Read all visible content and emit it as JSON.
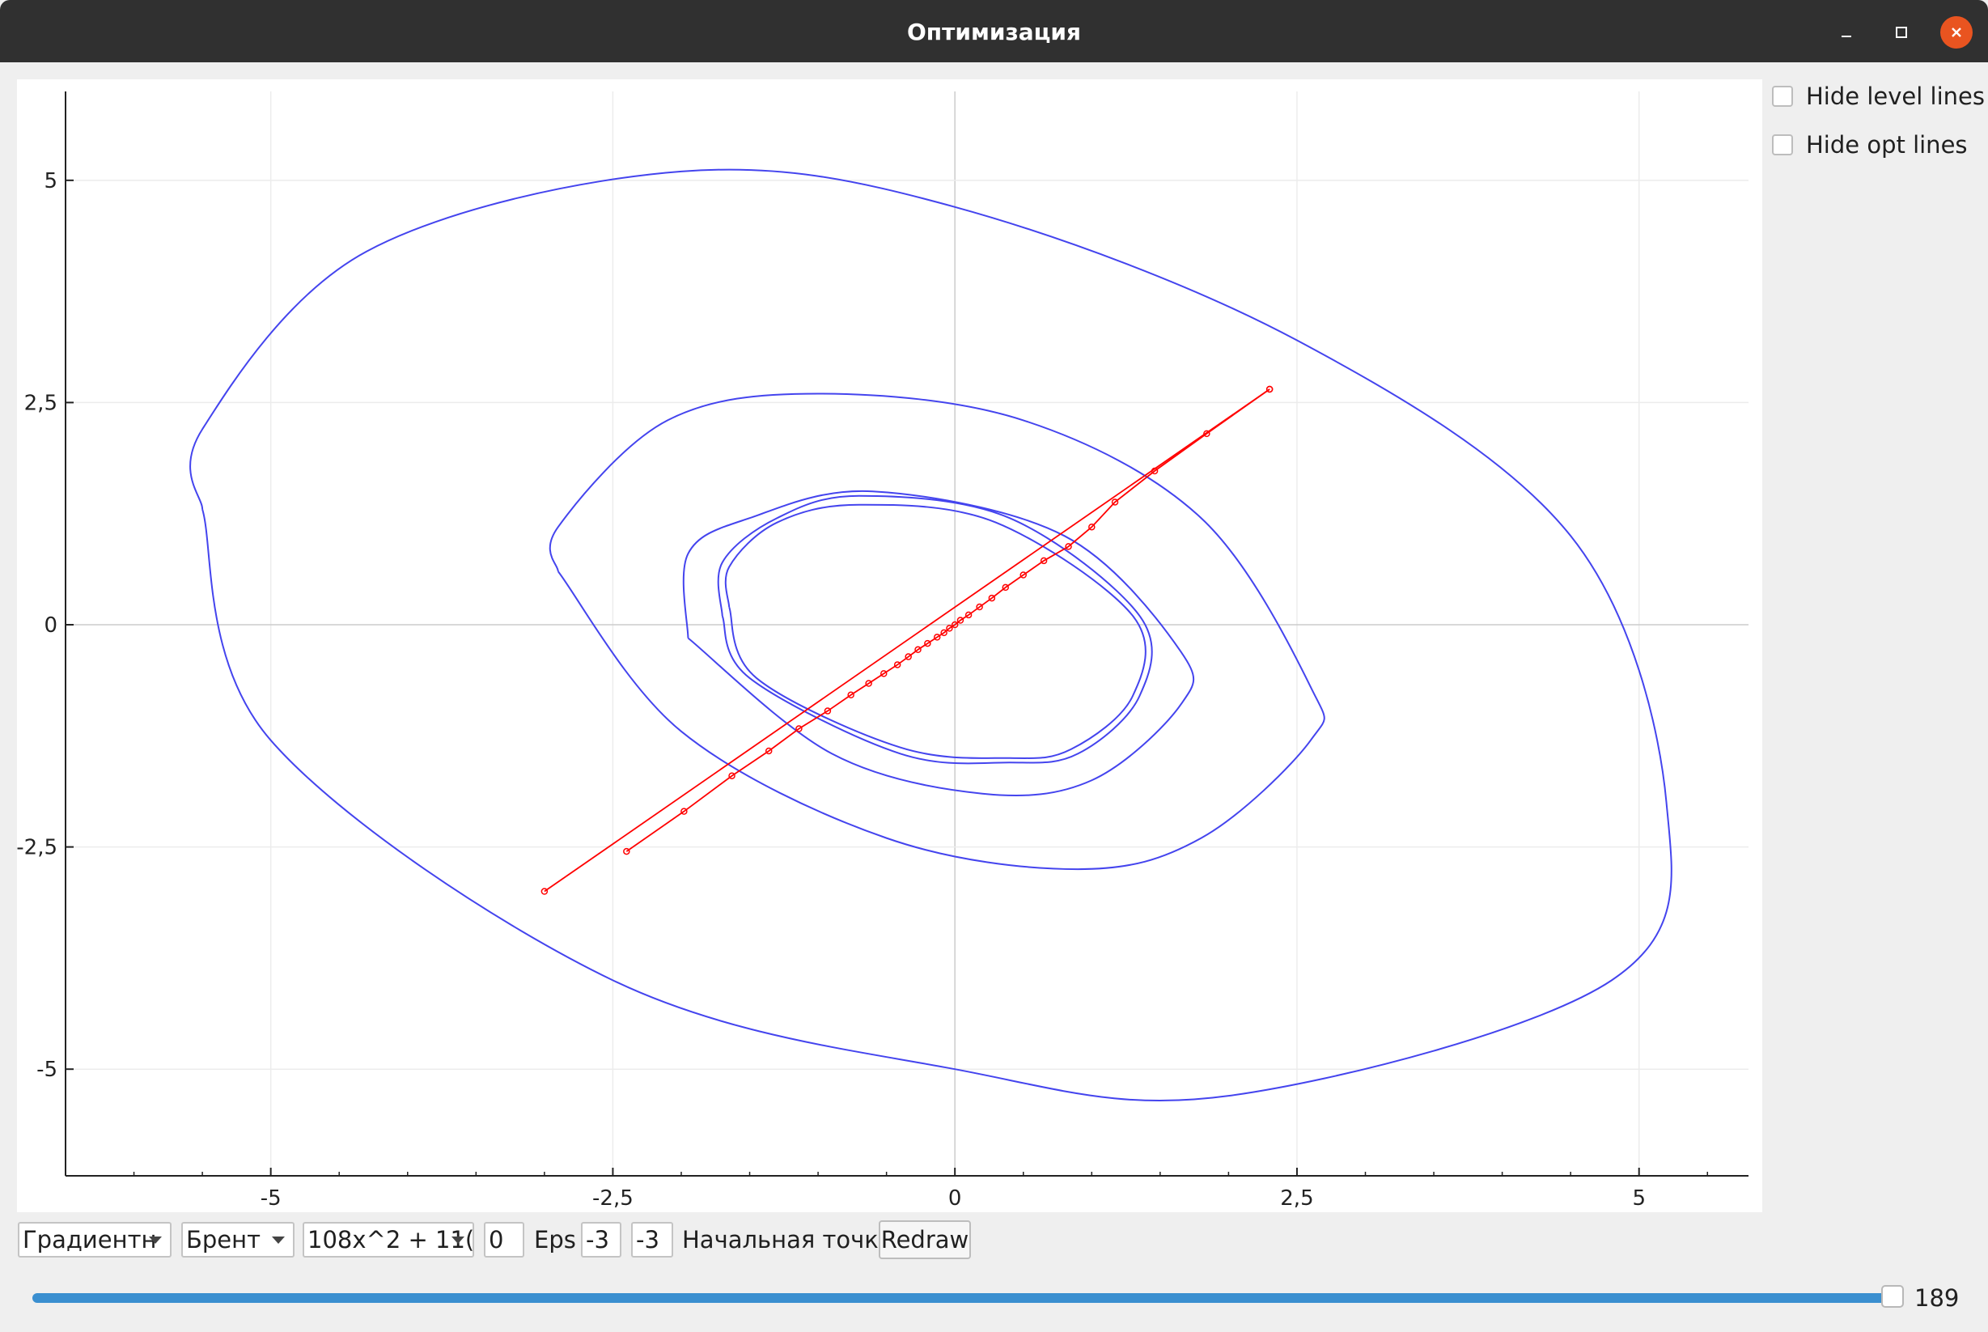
{
  "window": {
    "title": "Оптимизация",
    "controls": [
      "minimize-icon",
      "maximize-icon",
      "close-icon"
    ],
    "accent_close": "#e95420"
  },
  "options": {
    "hide_level_lines": {
      "label": "Hide level lines",
      "checked": false
    },
    "hide_opt_lines": {
      "label": "Hide opt lines",
      "checked": false
    }
  },
  "toolbar": {
    "method": "Градиентн",
    "line_search": "Брент",
    "function": "108x^2 + 11(",
    "eps_value": "0",
    "eps_label": "Eps",
    "start_x": "-3",
    "start_y": "-3",
    "start_label": "Начальная точка",
    "redraw_label": "Redraw"
  },
  "slider": {
    "value": "189",
    "fill_fraction": 0.99,
    "color": "#3a8fd0"
  },
  "chart_data": {
    "type": "line",
    "title": "",
    "xlabel": "",
    "ylabel": "",
    "xlim": [
      -6.5,
      5.8
    ],
    "ylim": [
      -6.2,
      6
    ],
    "xticks": [
      -5,
      -2.5,
      0,
      2.5,
      5
    ],
    "yticks": [
      -5,
      -2.5,
      0,
      2.5,
      5
    ],
    "xtick_labels": [
      "-5",
      "-2,5",
      "0",
      "2,5",
      "5"
    ],
    "ytick_labels": [
      "-5",
      "-2,5",
      "0",
      "2,5",
      "5"
    ],
    "grid": true,
    "level_color": "#4444ee",
    "opt_color": "#ff0000",
    "series": [
      {
        "kind": "level",
        "points": [
          [
            -5.5,
            1.3
          ],
          [
            -5.5,
            2.2
          ],
          [
            -4.3,
            4.2
          ],
          [
            -2.0,
            5.1
          ],
          [
            0,
            4.7
          ],
          [
            2.5,
            3.2
          ],
          [
            4.5,
            1.0
          ],
          [
            5.2,
            -2.0
          ],
          [
            4.8,
            -4.0
          ],
          [
            2.0,
            -5.3
          ],
          [
            0,
            -5.0
          ],
          [
            -2.5,
            -4.0
          ],
          [
            -5.0,
            -1.3
          ],
          [
            -5.5,
            1.3
          ]
        ]
      },
      {
        "kind": "level",
        "points": [
          [
            -2.9,
            0.6
          ],
          [
            -2.9,
            1.1
          ],
          [
            -2.1,
            2.3
          ],
          [
            -1.0,
            2.6
          ],
          [
            0.5,
            2.3
          ],
          [
            1.8,
            1.2
          ],
          [
            2.6,
            -0.7
          ],
          [
            2.6,
            -1.3
          ],
          [
            1.8,
            -2.4
          ],
          [
            0.9,
            -2.75
          ],
          [
            -0.5,
            -2.4
          ],
          [
            -2.0,
            -1.2
          ],
          [
            -2.9,
            0.6
          ]
        ]
      },
      {
        "kind": "level",
        "points": [
          [
            -1.95,
            -0.15
          ],
          [
            -1.95,
            0.8
          ],
          [
            -1.5,
            1.2
          ],
          [
            -0.6,
            1.5
          ],
          [
            0.8,
            1.0
          ],
          [
            1.65,
            -0.3
          ],
          [
            1.65,
            -0.9
          ],
          [
            1.0,
            -1.75
          ],
          [
            0.2,
            -1.9
          ],
          [
            -0.9,
            -1.45
          ],
          [
            -1.95,
            -0.15
          ]
        ]
      },
      {
        "kind": "level",
        "points": [
          [
            -1.7,
            0.1
          ],
          [
            -1.7,
            0.7
          ],
          [
            -1.3,
            1.2
          ],
          [
            -0.7,
            1.45
          ],
          [
            0.4,
            1.2
          ],
          [
            1.35,
            0.1
          ],
          [
            1.35,
            -0.8
          ],
          [
            0.9,
            -1.45
          ],
          [
            0.4,
            -1.55
          ],
          [
            -0.4,
            -1.45
          ],
          [
            -1.5,
            -0.6
          ],
          [
            -1.7,
            0.1
          ]
        ]
      },
      {
        "kind": "level",
        "points": [
          [
            -1.65,
            0.2
          ],
          [
            -1.65,
            0.65
          ],
          [
            -1.3,
            1.15
          ],
          [
            -0.7,
            1.35
          ],
          [
            0.3,
            1.15
          ],
          [
            1.3,
            0.1
          ],
          [
            1.3,
            -0.8
          ],
          [
            0.85,
            -1.4
          ],
          [
            0.4,
            -1.5
          ],
          [
            -0.4,
            -1.38
          ],
          [
            -1.45,
            -0.6
          ],
          [
            -1.65,
            0.2
          ]
        ]
      },
      {
        "kind": "opt",
        "markers": false,
        "points": [
          [
            -3.0,
            -3.0
          ],
          [
            2.3,
            2.65
          ]
        ]
      },
      {
        "kind": "opt",
        "markers": true,
        "points": [
          [
            -2.4,
            -2.55
          ],
          [
            -1.98,
            -2.1
          ],
          [
            -1.63,
            -1.7
          ],
          [
            -1.36,
            -1.42
          ],
          [
            -1.14,
            -1.17
          ],
          [
            -0.93,
            -0.97
          ],
          [
            -0.76,
            -0.79
          ],
          [
            -0.63,
            -0.66
          ],
          [
            -0.52,
            -0.55
          ],
          [
            -0.42,
            -0.45
          ],
          [
            -0.34,
            -0.36
          ],
          [
            -0.27,
            -0.28
          ],
          [
            -0.2,
            -0.21
          ],
          [
            -0.13,
            -0.14
          ],
          [
            -0.08,
            -0.09
          ],
          [
            -0.04,
            -0.04
          ],
          [
            0.0,
            0.0
          ],
          [
            0.04,
            0.05
          ],
          [
            0.1,
            0.11
          ],
          [
            0.18,
            0.2
          ],
          [
            0.27,
            0.3
          ],
          [
            0.37,
            0.42
          ],
          [
            0.5,
            0.56
          ],
          [
            0.65,
            0.72
          ],
          [
            0.83,
            0.88
          ],
          [
            1.0,
            1.1
          ],
          [
            1.17,
            1.38
          ],
          [
            1.46,
            1.73
          ],
          [
            1.84,
            2.15
          ],
          [
            2.3,
            2.65
          ]
        ]
      }
    ]
  }
}
